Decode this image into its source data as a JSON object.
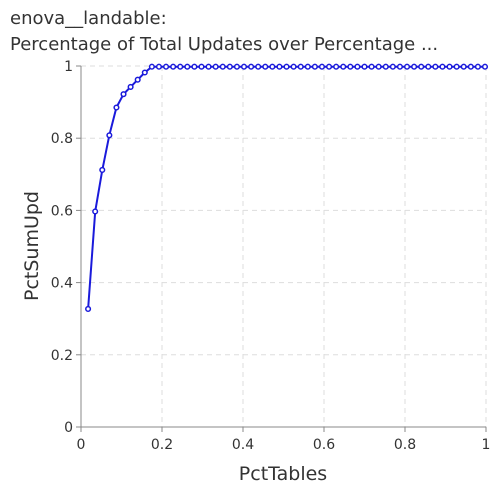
{
  "chart_data": {
    "type": "line",
    "title_line1": "enova__landable:",
    "title_line2": "Percentage of Total Updates over Percentage ...",
    "xlabel": "PctTables",
    "ylabel": "PctSumUpd",
    "xlim": [
      0,
      1
    ],
    "ylim": [
      0,
      1
    ],
    "x_ticks": [
      "0",
      "0.2",
      "0.4",
      "0.6",
      "0.8",
      "1"
    ],
    "y_ticks": [
      "0",
      "0.2",
      "0.4",
      "0.6",
      "0.8",
      "1"
    ],
    "grid": true,
    "series_color": "#1a1adb",
    "x": [
      0.0175,
      0.035,
      0.0525,
      0.07,
      0.0875,
      0.105,
      0.1225,
      0.14,
      0.1575,
      0.175,
      0.1925,
      0.21,
      0.2275,
      0.245,
      0.2625,
      0.28,
      0.2975,
      0.315,
      0.3325,
      0.35,
      0.3675,
      0.385,
      0.4025,
      0.42,
      0.4375,
      0.455,
      0.4725,
      0.49,
      0.5075,
      0.525,
      0.5425,
      0.56,
      0.5775,
      0.595,
      0.6125,
      0.63,
      0.6475,
      0.665,
      0.6825,
      0.7,
      0.7175,
      0.735,
      0.7525,
      0.77,
      0.7875,
      0.805,
      0.8225,
      0.84,
      0.8575,
      0.875,
      0.8925,
      0.91,
      0.9275,
      0.945,
      0.9625,
      0.98,
      0.9975
    ],
    "y": [
      0.327,
      0.597,
      0.712,
      0.808,
      0.885,
      0.922,
      0.942,
      0.962,
      0.982,
      0.998,
      0.998,
      0.998,
      0.998,
      0.998,
      0.998,
      0.998,
      0.998,
      0.998,
      0.998,
      0.998,
      0.998,
      0.998,
      0.998,
      0.998,
      0.998,
      0.998,
      0.998,
      0.998,
      0.998,
      0.998,
      0.998,
      0.998,
      0.998,
      0.998,
      0.998,
      0.998,
      0.998,
      0.998,
      0.998,
      0.998,
      0.998,
      0.998,
      0.998,
      0.998,
      0.998,
      0.998,
      0.998,
      0.998,
      0.998,
      0.998,
      0.998,
      0.998,
      0.998,
      0.998,
      0.998,
      0.998,
      0.998
    ]
  }
}
